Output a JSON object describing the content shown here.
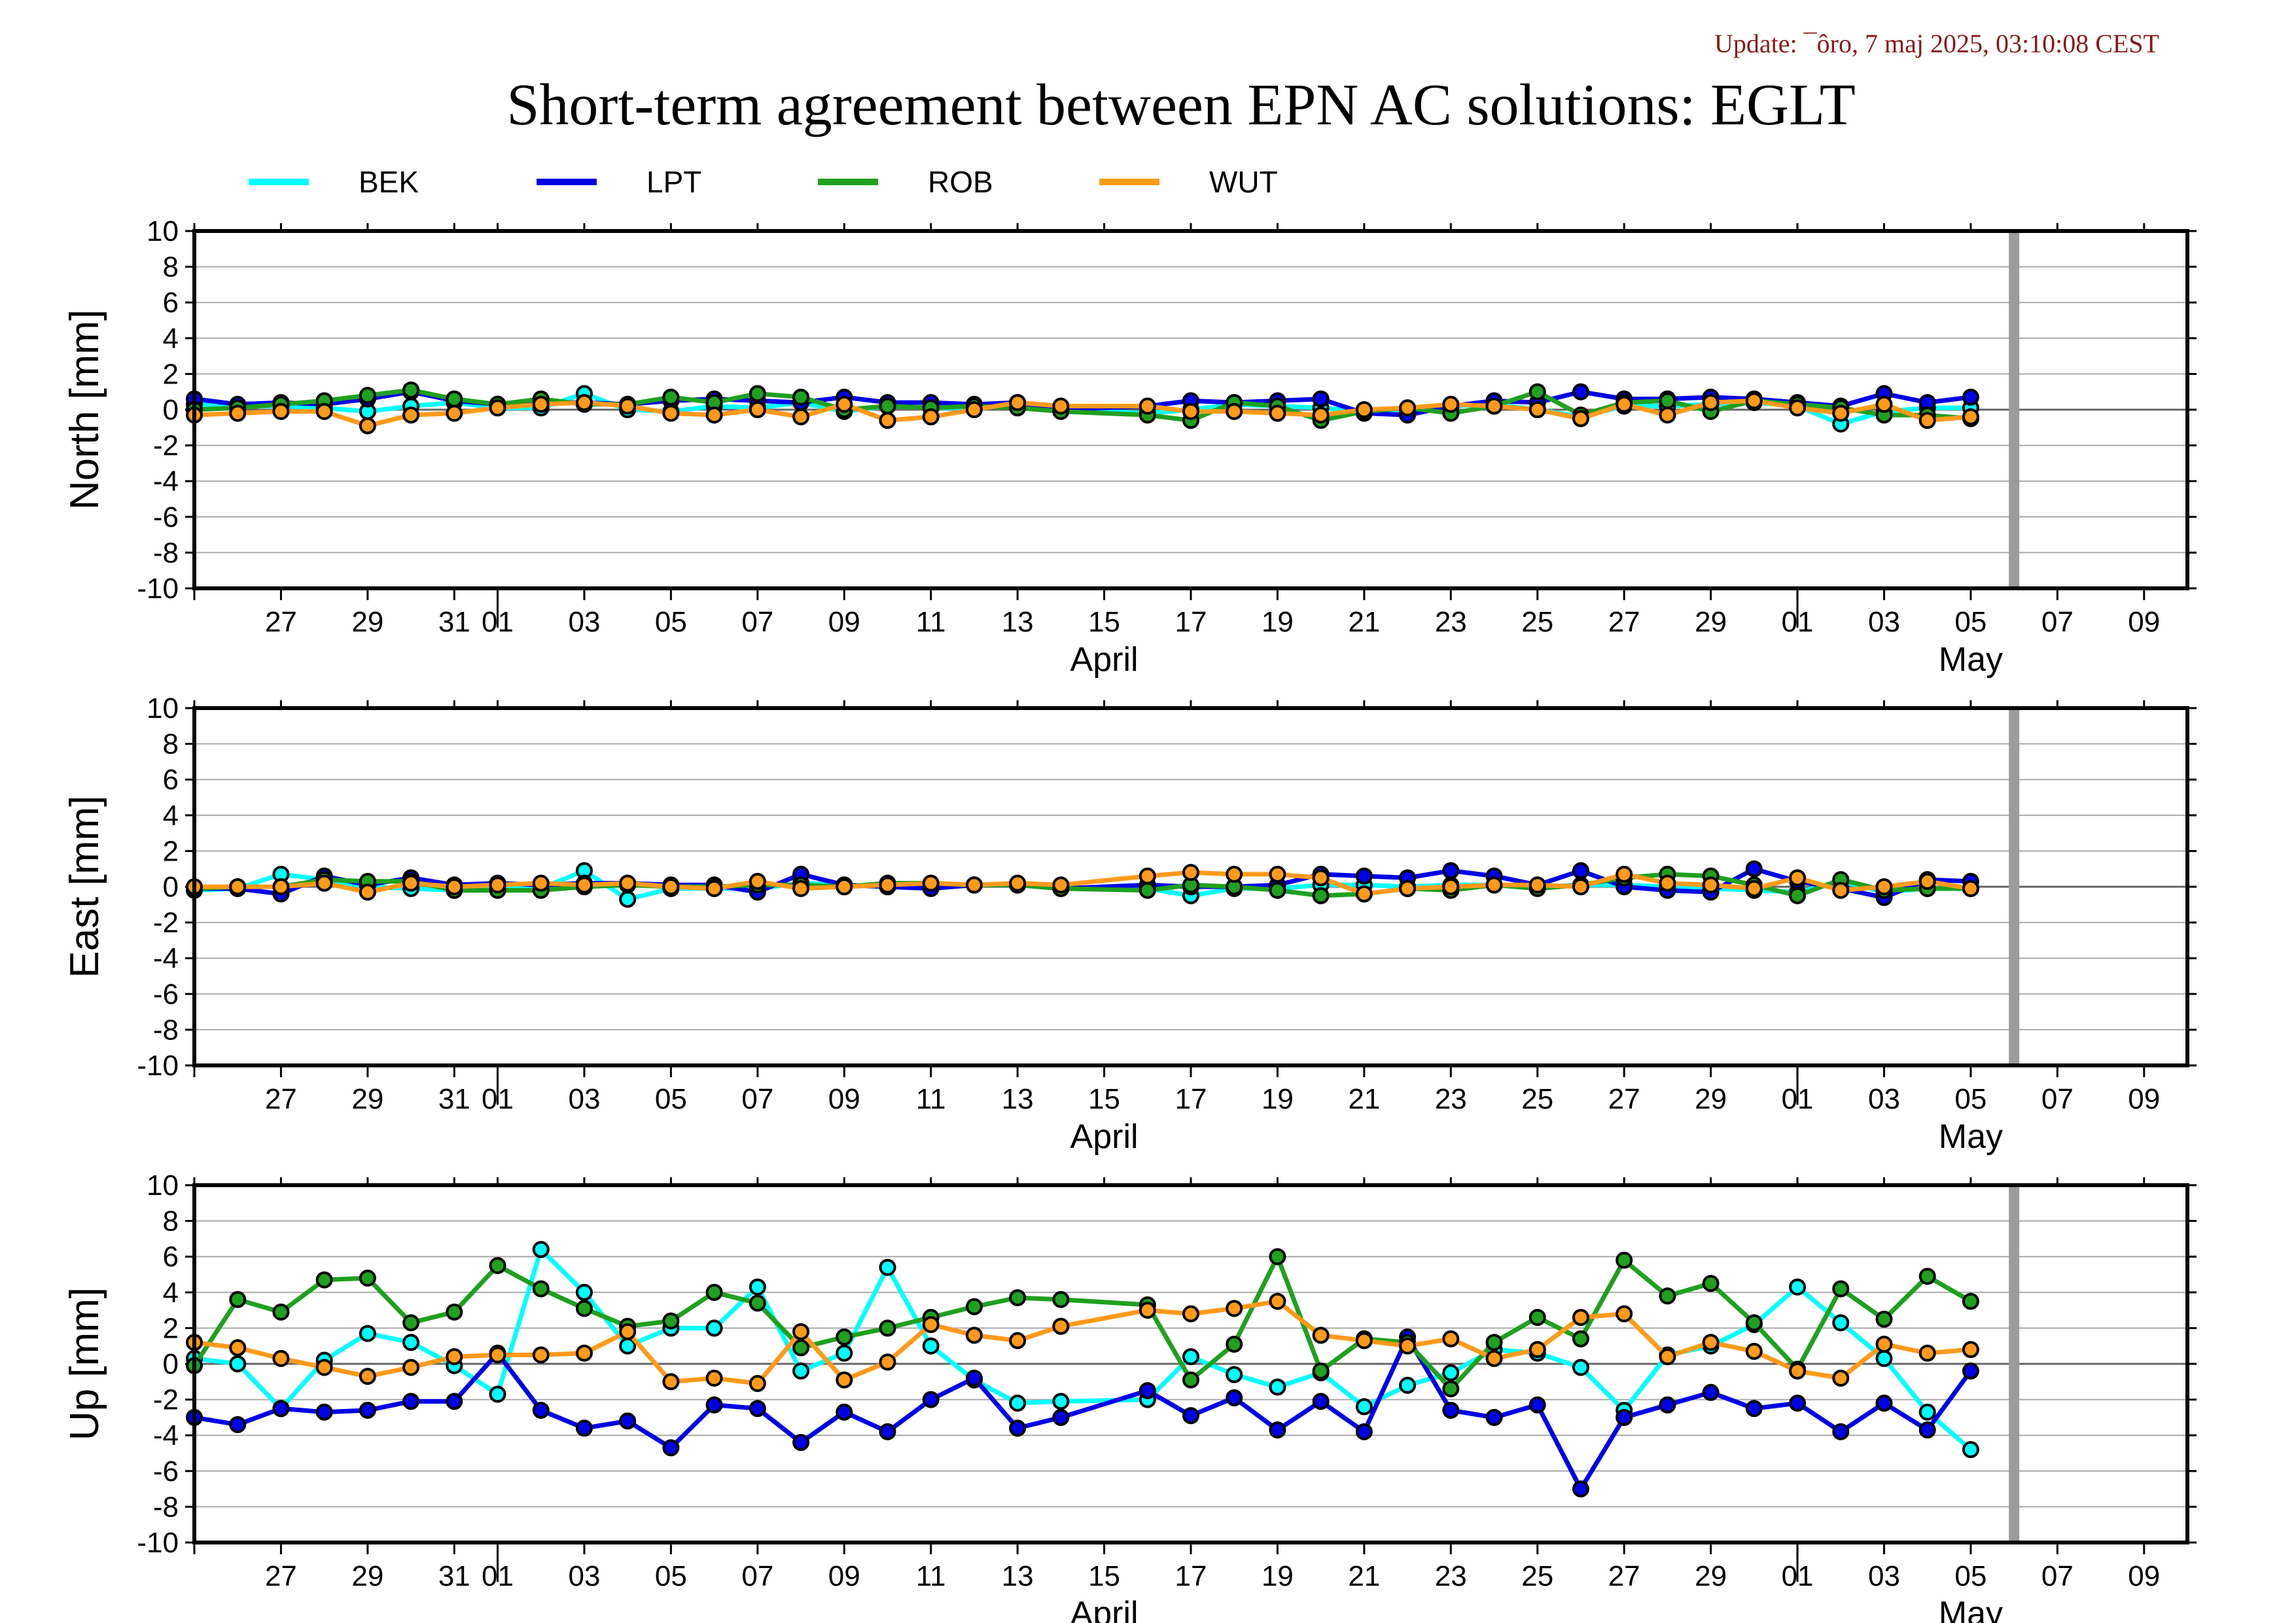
{
  "update_text": "Update: ¯ôro, 7 maj 2025, 03:10:08 CEST",
  "chart_data": {
    "type": "line",
    "title": "Short-term agreement between EPN AC solutions: EGLT",
    "legend_placement": "top",
    "x_axis": {
      "start": "2025-03-25",
      "end": "2025-05-10",
      "tick_labels": [
        "27",
        "29",
        "31",
        "01",
        "03",
        "05",
        "07",
        "09",
        "11",
        "13",
        "15",
        "17",
        "19",
        "21",
        "23",
        "25",
        "27",
        "29",
        "01",
        "03",
        "05",
        "07",
        "09"
      ],
      "month_labels": [
        "April",
        "May"
      ]
    },
    "marker_date": "2025-05-06",
    "dates": [
      "2025-03-25",
      "2025-03-26",
      "2025-03-27",
      "2025-03-28",
      "2025-03-29",
      "2025-03-30",
      "2025-03-31",
      "2025-04-01",
      "2025-04-02",
      "2025-04-03",
      "2025-04-04",
      "2025-04-05",
      "2025-04-06",
      "2025-04-07",
      "2025-04-08",
      "2025-04-09",
      "2025-04-10",
      "2025-04-11",
      "2025-04-12",
      "2025-04-13",
      "2025-04-14",
      "2025-04-16",
      "2025-04-17",
      "2025-04-18",
      "2025-04-19",
      "2025-04-20",
      "2025-04-21",
      "2025-04-22",
      "2025-04-23",
      "2025-04-24",
      "2025-04-25",
      "2025-04-26",
      "2025-04-27",
      "2025-04-28",
      "2025-04-29",
      "2025-04-30",
      "2025-05-01",
      "2025-05-02",
      "2025-05-03",
      "2025-05-04",
      "2025-05-05"
    ],
    "series_styles": [
      {
        "name": "BEK",
        "color": "#00ffff"
      },
      {
        "name": "LPT",
        "color": "#0000e6"
      },
      {
        "name": "ROB",
        "color": "#1fa01f"
      },
      {
        "name": "WUT",
        "color": "#ff9a1a"
      }
    ],
    "panels": [
      {
        "ylabel": "North [mm]",
        "ylim": [
          -10,
          10
        ],
        "yticks": [
          10,
          8,
          6,
          4,
          2,
          0,
          -2,
          -4,
          -6,
          -8,
          -10
        ],
        "grid": true,
        "series": [
          {
            "name": "BEK",
            "values": [
              0.3,
              0.2,
              0.2,
              0.1,
              -0.1,
              0.2,
              0.4,
              0.1,
              0.1,
              0.9,
              0.0,
              -0.1,
              0.2,
              0.1,
              0.4,
              -0.1,
              0.2,
              0.1,
              0.1,
              0.4,
              0.0,
              -0.2,
              0.0,
              0.3,
              0.2,
              0.1,
              -0.1,
              0.0,
              0.2,
              0.3,
              0.0,
              -0.4,
              0.2,
              0.2,
              0.3,
              0.4,
              0.2,
              -0.8,
              -0.1,
              0.1,
              0.1
            ]
          },
          {
            "name": "LPT",
            "values": [
              0.6,
              0.3,
              0.4,
              0.3,
              0.6,
              1.0,
              0.5,
              0.3,
              0.4,
              0.4,
              0.3,
              0.5,
              0.6,
              0.5,
              0.4,
              0.7,
              0.4,
              0.4,
              0.3,
              0.4,
              0.0,
              0.2,
              0.5,
              0.4,
              0.5,
              0.6,
              -0.2,
              -0.3,
              0.2,
              0.5,
              0.4,
              1.0,
              0.6,
              0.6,
              0.7,
              0.6,
              0.4,
              0.2,
              0.9,
              0.4,
              0.7
            ]
          },
          {
            "name": "ROB",
            "values": [
              0.0,
              0.1,
              0.3,
              0.5,
              0.8,
              1.1,
              0.6,
              0.3,
              0.6,
              0.3,
              0.3,
              0.7,
              0.4,
              0.9,
              0.7,
              0.0,
              0.2,
              0.1,
              0.2,
              0.1,
              -0.1,
              -0.3,
              -0.6,
              0.4,
              0.2,
              -0.6,
              -0.1,
              0.1,
              -0.2,
              0.2,
              1.0,
              -0.3,
              0.4,
              0.5,
              -0.1,
              0.5,
              0.3,
              0.1,
              -0.3,
              -0.3,
              -0.5
            ]
          },
          {
            "name": "WUT",
            "values": [
              -0.3,
              -0.2,
              -0.1,
              -0.1,
              -0.9,
              -0.3,
              -0.2,
              0.1,
              0.3,
              0.4,
              0.2,
              -0.2,
              -0.3,
              0.0,
              -0.4,
              0.3,
              -0.6,
              -0.4,
              0.0,
              0.4,
              0.2,
              0.2,
              -0.1,
              -0.1,
              -0.2,
              -0.3,
              0.0,
              0.1,
              0.3,
              0.2,
              0.0,
              -0.5,
              0.3,
              -0.3,
              0.4,
              0.5,
              0.1,
              -0.2,
              0.3,
              -0.6,
              -0.4
            ]
          }
        ]
      },
      {
        "ylabel": "East [mm]",
        "ylim": [
          -10,
          10
        ],
        "yticks": [
          10,
          8,
          6,
          4,
          2,
          0,
          -2,
          -4,
          -6,
          -8,
          -10
        ],
        "grid": true,
        "series": [
          {
            "name": "BEK",
            "values": [
              -0.2,
              -0.1,
              0.7,
              0.4,
              0.0,
              -0.1,
              -0.2,
              -0.1,
              -0.1,
              0.9,
              -0.7,
              -0.1,
              -0.1,
              -0.1,
              0.2,
              0.1,
              0.0,
              0.1,
              0.1,
              0.1,
              -0.1,
              -0.1,
              -0.5,
              -0.1,
              -0.1,
              0.1,
              0.1,
              0.0,
              0.1,
              0.1,
              0.0,
              0.1,
              0.1,
              0.0,
              -0.1,
              -0.2,
              -0.3,
              0.3,
              -0.3,
              -0.1,
              -0.1
            ]
          },
          {
            "name": "LPT",
            "values": [
              -0.1,
              -0.1,
              -0.4,
              0.6,
              0.1,
              0.5,
              0.1,
              0.2,
              0.1,
              0.2,
              0.2,
              0.1,
              0.1,
              -0.3,
              0.7,
              0.1,
              0.0,
              -0.1,
              0.1,
              0.1,
              -0.1,
              0.1,
              0.0,
              0.0,
              0.1,
              0.7,
              0.6,
              0.5,
              0.9,
              0.6,
              0.1,
              0.9,
              0.0,
              -0.2,
              -0.3,
              1.0,
              0.3,
              -0.1,
              -0.6,
              0.4,
              0.3
            ]
          },
          {
            "name": "ROB",
            "values": [
              -0.1,
              0.0,
              0.0,
              0.4,
              0.3,
              0.3,
              -0.2,
              -0.2,
              -0.2,
              0.0,
              0.1,
              0.0,
              0.0,
              0.1,
              0.1,
              0.0,
              0.2,
              0.2,
              0.1,
              0.1,
              -0.1,
              -0.2,
              0.1,
              0.0,
              -0.2,
              -0.5,
              -0.4,
              -0.1,
              -0.2,
              0.1,
              -0.1,
              0.1,
              0.5,
              0.7,
              0.6,
              0.1,
              -0.5,
              0.4,
              -0.2,
              -0.1,
              -0.1
            ]
          },
          {
            "name": "WUT",
            "values": [
              0.0,
              0.0,
              0.0,
              0.2,
              -0.3,
              0.2,
              0.0,
              0.1,
              0.2,
              0.1,
              0.2,
              0.0,
              -0.1,
              0.3,
              -0.1,
              0.0,
              0.1,
              0.2,
              0.1,
              0.2,
              0.1,
              0.6,
              0.8,
              0.7,
              0.7,
              0.5,
              -0.4,
              -0.1,
              0.0,
              0.1,
              0.1,
              0.0,
              0.7,
              0.2,
              0.1,
              -0.1,
              0.5,
              -0.2,
              0.0,
              0.3,
              -0.1
            ]
          }
        ]
      },
      {
        "ylabel": "Up [mm]",
        "ylim": [
          -10,
          10
        ],
        "yticks": [
          10,
          8,
          6,
          4,
          2,
          0,
          -2,
          -4,
          -6,
          -8,
          -10
        ],
        "grid": true,
        "series": [
          {
            "name": "BEK",
            "values": [
              0.3,
              0.0,
              -2.5,
              0.2,
              1.7,
              1.2,
              -0.1,
              -1.7,
              6.4,
              4.0,
              1.0,
              2.0,
              2.0,
              4.3,
              -0.4,
              0.6,
              5.4,
              1.0,
              -0.9,
              -2.2,
              -2.1,
              -2.0,
              0.4,
              -0.6,
              -1.3,
              -0.5,
              -2.4,
              -1.2,
              -0.5,
              0.8,
              0.6,
              -0.2,
              -2.6,
              0.5,
              1.0,
              2.2,
              4.3,
              2.3,
              0.3,
              -2.7,
              -4.8
            ]
          },
          {
            "name": "LPT",
            "values": [
              -3.0,
              -3.4,
              -2.5,
              -2.7,
              -2.6,
              -2.1,
              -2.1,
              0.6,
              -2.6,
              -3.6,
              -3.2,
              -4.7,
              -2.3,
              -2.5,
              -4.4,
              -2.7,
              -3.8,
              -2.0,
              -0.8,
              -3.6,
              -3.0,
              -1.5,
              -2.9,
              -1.9,
              -3.7,
              -2.1,
              -3.8,
              1.5,
              -2.6,
              -3.0,
              -2.3,
              -7.0,
              -3.0,
              -2.3,
              -1.6,
              -2.5,
              -2.2,
              -3.8,
              -2.2,
              -3.7,
              -0.4
            ]
          },
          {
            "name": "ROB",
            "values": [
              -0.1,
              3.6,
              2.9,
              4.7,
              4.8,
              2.3,
              2.9,
              5.5,
              4.2,
              3.1,
              2.1,
              2.4,
              4.0,
              3.4,
              0.9,
              1.5,
              2.0,
              2.6,
              3.2,
              3.7,
              3.6,
              3.3,
              -0.9,
              1.1,
              6.0,
              -0.4,
              1.4,
              1.2,
              -1.4,
              1.2,
              2.6,
              1.4,
              5.8,
              3.8,
              4.5,
              2.3,
              -0.3,
              4.2,
              2.5,
              4.9,
              3.5
            ]
          },
          {
            "name": "WUT",
            "values": [
              1.2,
              0.9,
              0.3,
              -0.2,
              -0.7,
              -0.2,
              0.4,
              0.5,
              0.5,
              0.6,
              1.8,
              -1.0,
              -0.8,
              -1.1,
              1.8,
              -0.9,
              0.1,
              2.2,
              1.6,
              1.3,
              2.1,
              3.0,
              2.8,
              3.1,
              3.5,
              1.6,
              1.3,
              1.0,
              1.4,
              0.3,
              0.8,
              2.6,
              2.8,
              0.4,
              1.2,
              0.7,
              -0.4,
              -0.8,
              1.1,
              0.6,
              0.8
            ]
          }
        ]
      }
    ]
  }
}
